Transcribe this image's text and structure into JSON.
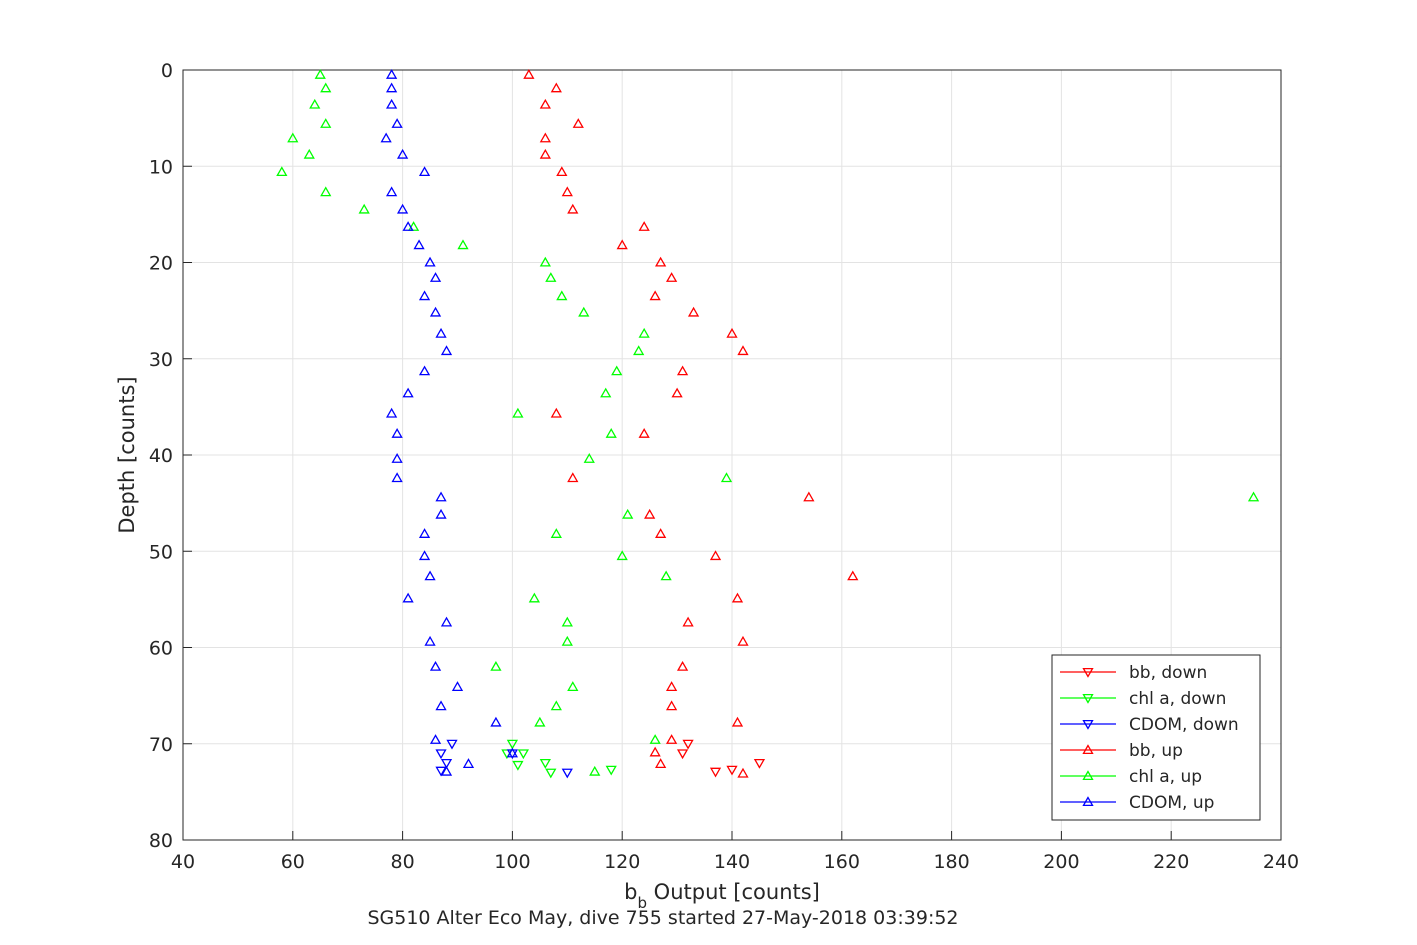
{
  "chart_data": {
    "type": "scatter",
    "title": "SG510 Alter Eco May, dive 755 started 27-May-2018 03:39:52",
    "xlabel_main": "b",
    "xlabel_sub": "b",
    "xlabel_rest": " Output [counts]",
    "ylabel": "Depth [counts]",
    "xlim": [
      40,
      240
    ],
    "ylim": [
      0,
      80
    ],
    "y_reversed": true,
    "xticks": [
      40,
      60,
      80,
      100,
      120,
      140,
      160,
      180,
      200,
      220,
      240
    ],
    "yticks": [
      0,
      10,
      20,
      30,
      40,
      50,
      60,
      70,
      80
    ],
    "grid": true,
    "legend_position": "bottom-right",
    "series": [
      {
        "name": "bb, down",
        "color": "#ff0000",
        "marker": "triangle-down",
        "points": [
          [
            132,
            70.0
          ],
          [
            131,
            71.0
          ],
          [
            137,
            72.9
          ],
          [
            140,
            72.7
          ],
          [
            145,
            72.0
          ]
        ]
      },
      {
        "name": "chl a, down",
        "color": "#00ff00",
        "marker": "triangle-down",
        "points": [
          [
            100,
            70.0
          ],
          [
            99,
            71.0
          ],
          [
            102,
            71.0
          ],
          [
            101,
            72.2
          ],
          [
            106,
            72.0
          ],
          [
            107,
            73.0
          ],
          [
            118,
            72.7
          ]
        ]
      },
      {
        "name": "CDOM, down",
        "color": "#0000ff",
        "marker": "triangle-down",
        "points": [
          [
            89,
            70.0
          ],
          [
            87,
            71.0
          ],
          [
            88,
            72.0
          ],
          [
            87,
            72.8
          ],
          [
            100,
            71.0
          ],
          [
            110,
            73.0
          ]
        ]
      },
      {
        "name": "bb, up",
        "color": "#ff0000",
        "marker": "triangle-up",
        "points": [
          [
            103,
            0.5
          ],
          [
            108,
            1.9
          ],
          [
            106,
            3.6
          ],
          [
            112,
            5.6
          ],
          [
            106,
            7.1
          ],
          [
            106,
            8.8
          ],
          [
            109,
            10.6
          ],
          [
            110,
            12.7
          ],
          [
            111,
            14.5
          ],
          [
            124,
            16.3
          ],
          [
            120,
            18.2
          ],
          [
            127,
            20.0
          ],
          [
            129,
            21.6
          ],
          [
            126,
            23.5
          ],
          [
            133,
            25.2
          ],
          [
            140,
            27.4
          ],
          [
            142,
            29.2
          ],
          [
            131,
            31.3
          ],
          [
            130,
            33.6
          ],
          [
            108,
            35.7
          ],
          [
            124,
            37.8
          ],
          [
            111,
            42.4
          ],
          [
            154,
            44.4
          ],
          [
            125,
            46.2
          ],
          [
            127,
            48.2
          ],
          [
            137,
            50.5
          ],
          [
            162,
            52.6
          ],
          [
            141,
            54.9
          ],
          [
            132,
            57.4
          ],
          [
            142,
            59.4
          ],
          [
            131,
            62.0
          ],
          [
            129,
            64.1
          ],
          [
            129,
            66.1
          ],
          [
            141,
            67.8
          ],
          [
            129,
            69.6
          ],
          [
            126,
            70.9
          ],
          [
            127,
            72.1
          ],
          [
            142,
            73.1
          ]
        ]
      },
      {
        "name": "chl a, up",
        "color": "#00ff00",
        "marker": "triangle-up",
        "points": [
          [
            65,
            0.5
          ],
          [
            66,
            1.9
          ],
          [
            64,
            3.6
          ],
          [
            66,
            5.6
          ],
          [
            60,
            7.1
          ],
          [
            63,
            8.8
          ],
          [
            58,
            10.6
          ],
          [
            66,
            12.7
          ],
          [
            73,
            14.5
          ],
          [
            82,
            16.3
          ],
          [
            91,
            18.2
          ],
          [
            106,
            20.0
          ],
          [
            107,
            21.6
          ],
          [
            109,
            23.5
          ],
          [
            113,
            25.2
          ],
          [
            124,
            27.4
          ],
          [
            123,
            29.2
          ],
          [
            119,
            31.3
          ],
          [
            117,
            33.6
          ],
          [
            101,
            35.7
          ],
          [
            118,
            37.8
          ],
          [
            114,
            40.4
          ],
          [
            139,
            42.4
          ],
          [
            235,
            44.4
          ],
          [
            121,
            46.2
          ],
          [
            108,
            48.2
          ],
          [
            120,
            50.5
          ],
          [
            128,
            52.6
          ],
          [
            104,
            54.9
          ],
          [
            110,
            57.4
          ],
          [
            110,
            59.4
          ],
          [
            97,
            62.0
          ],
          [
            111,
            64.1
          ],
          [
            108,
            66.1
          ],
          [
            105,
            67.8
          ],
          [
            126,
            69.6
          ],
          [
            115,
            72.9
          ]
        ]
      },
      {
        "name": "CDOM, up",
        "color": "#0000ff",
        "marker": "triangle-up",
        "points": [
          [
            78,
            0.5
          ],
          [
            78,
            1.9
          ],
          [
            78,
            3.6
          ],
          [
            79,
            5.6
          ],
          [
            77,
            7.1
          ],
          [
            80,
            8.8
          ],
          [
            84,
            10.6
          ],
          [
            78,
            12.7
          ],
          [
            80,
            14.5
          ],
          [
            81,
            16.3
          ],
          [
            83,
            18.2
          ],
          [
            85,
            20.0
          ],
          [
            86,
            21.6
          ],
          [
            84,
            23.5
          ],
          [
            86,
            25.2
          ],
          [
            87,
            27.4
          ],
          [
            88,
            29.2
          ],
          [
            84,
            31.3
          ],
          [
            81,
            33.6
          ],
          [
            78,
            35.7
          ],
          [
            79,
            37.8
          ],
          [
            79,
            40.4
          ],
          [
            79,
            42.4
          ],
          [
            87,
            44.4
          ],
          [
            87,
            46.2
          ],
          [
            84,
            48.2
          ],
          [
            84,
            50.5
          ],
          [
            85,
            52.6
          ],
          [
            81,
            54.9
          ],
          [
            88,
            57.4
          ],
          [
            85,
            59.4
          ],
          [
            86,
            62.0
          ],
          [
            90,
            64.1
          ],
          [
            87,
            66.1
          ],
          [
            97,
            67.8
          ],
          [
            86,
            69.6
          ],
          [
            92,
            72.1
          ],
          [
            88,
            72.9
          ],
          [
            100,
            71.0
          ]
        ]
      }
    ]
  }
}
